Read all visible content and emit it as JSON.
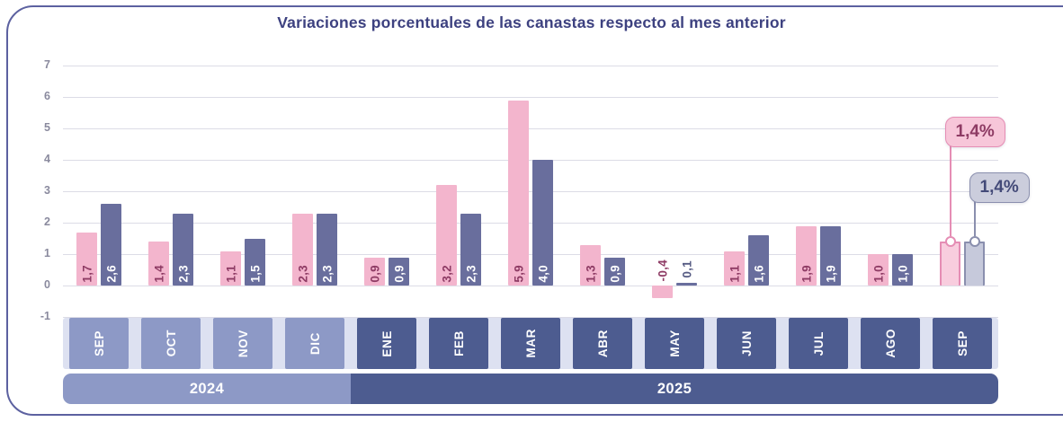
{
  "colors": {
    "pink": "#f3b5cd",
    "purple": "#696e9d",
    "pink_light": "#f8cdde",
    "purple_light": "#c6c9db",
    "pink_edge": "#e58db4",
    "purple_edge": "#8a8fae",
    "pink_label": "#8e3b64",
    "purple_label_out": "#565b83",
    "band_2024": "#8d99c6",
    "band_2025": "#4d5c90",
    "tab_strip": "#dde1f1",
    "grid": "#dcdce6",
    "ytick_text": "#8a8a9e",
    "title_text": "#3d4180",
    "card_border": "#5c61a0",
    "callout_pink_bg": "#f7c6d9",
    "callout_gray_bg": "#cbcddc",
    "callout_gray_text": "#434a78"
  },
  "chart_data": {
    "type": "bar",
    "title": "Variaciones porcentuales de las canastas respecto al mes anterior",
    "categories": [
      "SEP",
      "OCT",
      "NOV",
      "DIC",
      "ENE",
      "FEB",
      "MAR",
      "ABR",
      "MAY",
      "JUN",
      "JUL",
      "AGO",
      "SEP"
    ],
    "year_groups": [
      {
        "label": "2024",
        "months": 4
      },
      {
        "label": "2025",
        "months": 9
      }
    ],
    "series": [
      {
        "id": "pink",
        "values": [
          1.7,
          1.4,
          1.1,
          2.3,
          0.9,
          3.2,
          5.9,
          1.3,
          -0.4,
          1.1,
          1.9,
          1.0,
          1.4
        ],
        "bar_labels": [
          "1,7",
          "1,4",
          "1,1",
          "2,3",
          "0,9",
          "3,2",
          "5,9",
          "1,3",
          "-0,4",
          "1,1",
          "1,9",
          "1,0",
          null
        ]
      },
      {
        "id": "purple",
        "values": [
          2.6,
          2.3,
          1.5,
          2.3,
          0.9,
          2.3,
          4.0,
          0.9,
          0.1,
          1.6,
          1.9,
          1.0,
          1.4
        ],
        "bar_labels": [
          "2,6",
          "2,3",
          "1,5",
          "2,3",
          "0,9",
          "2,3",
          "4,0",
          "0,9",
          "0,1",
          "1,6",
          "1,9",
          "1,0",
          null
        ]
      }
    ],
    "callouts": [
      {
        "text": "1,4%",
        "series": "pink"
      },
      {
        "text": "1,4%",
        "series": "purple"
      }
    ],
    "ylim": [
      -1,
      7
    ],
    "yticks": [
      7,
      6,
      5,
      4,
      3,
      2,
      1,
      0,
      -1
    ],
    "grid": true,
    "legend": false
  }
}
